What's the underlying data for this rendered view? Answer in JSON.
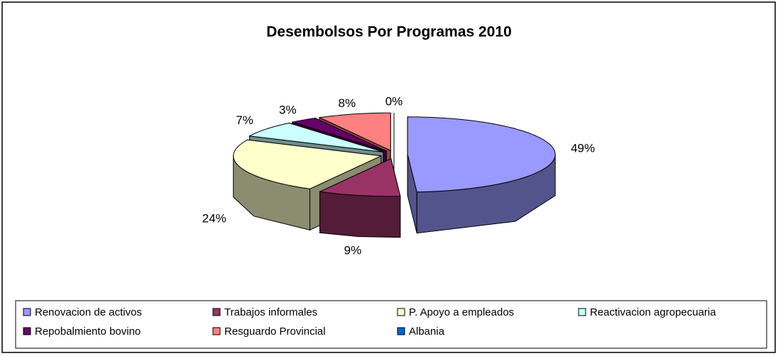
{
  "chart_data": {
    "type": "pie",
    "style": "3d",
    "title": "Desembolsos Por Programas 2010",
    "categories": [
      "Renovacion de activos",
      "Trabajos informales",
      "P. Apoyo a empleados",
      "Reactivacion agropecuaria",
      "Repobalmiento bovino",
      "Resguardo Provincial",
      "Albania"
    ],
    "values": [
      49,
      9,
      24,
      7,
      3,
      8,
      0
    ],
    "value_labels": [
      "49%",
      "9%",
      "24%",
      "7%",
      "3%",
      "8%",
      "0%"
    ],
    "colors": [
      "#9999ff",
      "#993366",
      "#ffffcc",
      "#ccffff",
      "#660066",
      "#ff8080",
      "#0066cc"
    ],
    "legend": "bottom"
  }
}
